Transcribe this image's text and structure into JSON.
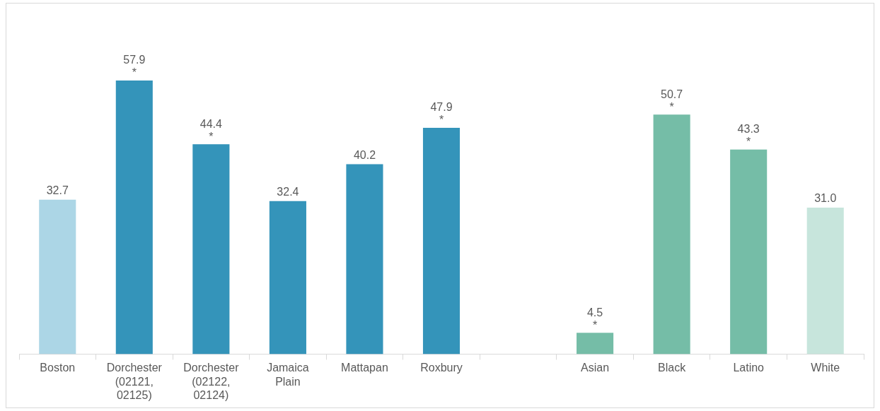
{
  "chart_data": {
    "type": "bar",
    "categories": [
      "Boston",
      "Dorchester (02121, 02125)",
      "Dorchester (02122, 02124)",
      "Jamaica Plain",
      "Mattapan",
      "Roxbury",
      null,
      "Asian",
      "Black",
      "Latino",
      "White"
    ],
    "values": [
      32.7,
      57.9,
      44.4,
      32.4,
      40.2,
      47.9,
      null,
      4.5,
      50.7,
      43.3,
      31.0
    ],
    "value_labels": [
      "32.7",
      "57.9",
      "44.4",
      "32.4",
      "40.2",
      "47.9",
      null,
      "4.5",
      "50.7",
      "43.3",
      "31.0"
    ],
    "colors": [
      "#acd6e6",
      "#3494ba",
      "#3494ba",
      "#3494ba",
      "#3494ba",
      "#3494ba",
      null,
      "#75bda7",
      "#75bda7",
      "#75bda7",
      "#c7e5dc"
    ],
    "annotations": [
      {
        "text": "*",
        "x": "Dorchester (02121, 02125)",
        "y": 57.9
      },
      {
        "text": "*",
        "x": "Dorchester (02122, 02124)",
        "y": 44.4
      },
      {
        "text": "*",
        "x": "Roxbury",
        "y": 47.9
      },
      {
        "text": "*",
        "x": "Asian",
        "y": 4.5
      },
      {
        "text": "*",
        "x": "Black",
        "y": 50.7
      },
      {
        "text": "*",
        "x": "Latino",
        "y": 43.3
      }
    ],
    "grid": false,
    "legend": false
  }
}
